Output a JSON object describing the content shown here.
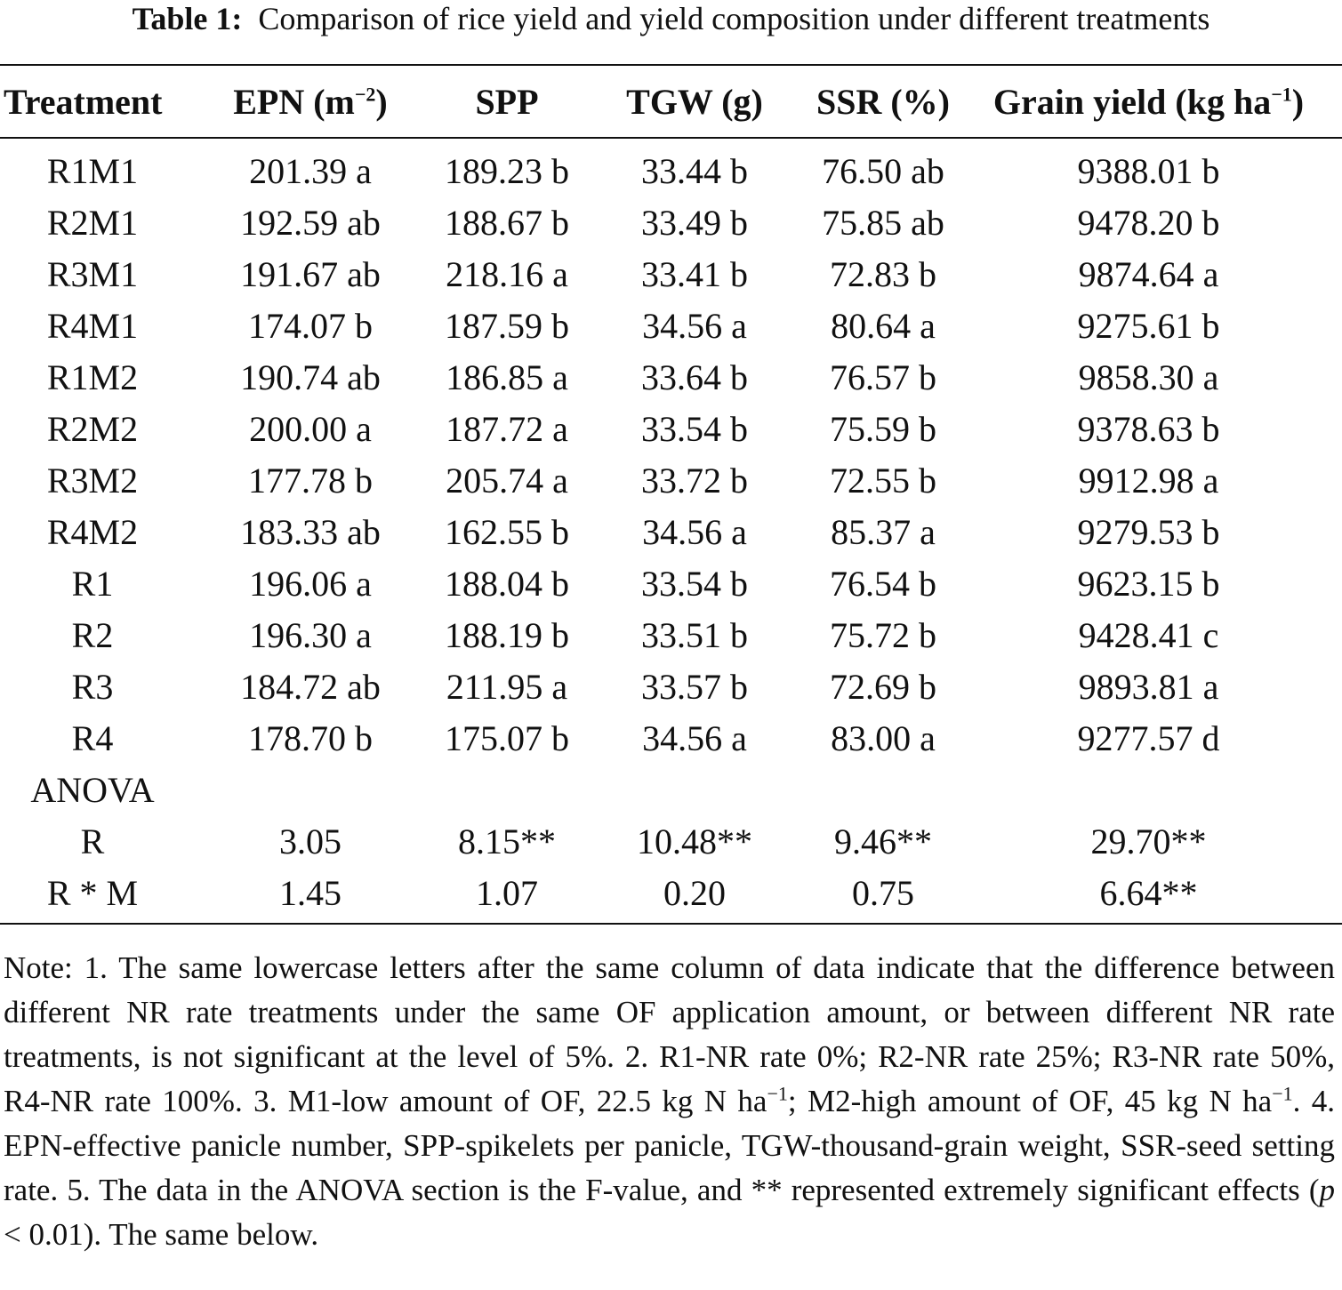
{
  "caption": {
    "label": "Table 1:",
    "text": "Comparison of rice yield and yield composition under different treatments"
  },
  "table": {
    "headers": {
      "treatment": "Treatment",
      "epn": "EPN (m",
      "epn_sup": "−2",
      "epn_close": ")",
      "spp": "SPP",
      "tgw": "TGW (g)",
      "ssr": "SSR (%)",
      "yield": "Grain yield (kg ha",
      "yield_sup": "−1",
      "yield_close": ")"
    },
    "rows": [
      {
        "treatment": "R1M1",
        "epn": "201.39 a",
        "spp": "189.23 b",
        "tgw": "33.44 b",
        "ssr": "76.50 ab",
        "yield": "9388.01 b"
      },
      {
        "treatment": "R2M1",
        "epn": "192.59 ab",
        "spp": "188.67 b",
        "tgw": "33.49 b",
        "ssr": "75.85 ab",
        "yield": "9478.20 b"
      },
      {
        "treatment": "R3M1",
        "epn": "191.67 ab",
        "spp": "218.16 a",
        "tgw": "33.41 b",
        "ssr": "72.83 b",
        "yield": "9874.64 a"
      },
      {
        "treatment": "R4M1",
        "epn": "174.07 b",
        "spp": "187.59 b",
        "tgw": "34.56 a",
        "ssr": "80.64 a",
        "yield": "9275.61 b"
      },
      {
        "treatment": "R1M2",
        "epn": "190.74 ab",
        "spp": "186.85 a",
        "tgw": "33.64 b",
        "ssr": "76.57 b",
        "yield": "9858.30 a"
      },
      {
        "treatment": "R2M2",
        "epn": "200.00 a",
        "spp": "187.72 a",
        "tgw": "33.54 b",
        "ssr": "75.59 b",
        "yield": "9378.63 b"
      },
      {
        "treatment": "R3M2",
        "epn": "177.78 b",
        "spp": "205.74 a",
        "tgw": "33.72 b",
        "ssr": "72.55 b",
        "yield": "9912.98 a"
      },
      {
        "treatment": "R4M2",
        "epn": "183.33 ab",
        "spp": "162.55 b",
        "tgw": "34.56 a",
        "ssr": "85.37 a",
        "yield": "9279.53 b"
      },
      {
        "treatment": "R1",
        "epn": "196.06 a",
        "spp": "188.04 b",
        "tgw": "33.54 b",
        "ssr": "76.54 b",
        "yield": "9623.15 b"
      },
      {
        "treatment": "R2",
        "epn": "196.30 a",
        "spp": "188.19 b",
        "tgw": "33.51 b",
        "ssr": "75.72 b",
        "yield": "9428.41 c"
      },
      {
        "treatment": "R3",
        "epn": "184.72 ab",
        "spp": "211.95 a",
        "tgw": "33.57 b",
        "ssr": "72.69 b",
        "yield": "9893.81 a"
      },
      {
        "treatment": "R4",
        "epn": "178.70 b",
        "spp": "175.07 b",
        "tgw": "34.56 a",
        "ssr": "83.00 a",
        "yield": "9277.57 d"
      },
      {
        "treatment": "ANOVA",
        "epn": "",
        "spp": "",
        "tgw": "",
        "ssr": "",
        "yield": ""
      },
      {
        "treatment": "R",
        "epn": "3.05",
        "spp": "8.15**",
        "tgw": "10.48**",
        "ssr": "9.46**",
        "yield": "29.70**"
      },
      {
        "treatment": "R * M",
        "epn": "1.45",
        "spp": "1.07",
        "tgw": "0.20",
        "ssr": "0.75",
        "yield": "6.64**"
      }
    ]
  },
  "note": {
    "part1": "Note: 1. The same lowercase letters after the same column of data indicate that the difference between different NR rate treatments under the same OF application amount, or between different NR rate treatments, is not significant at the level of 5%. 2. R1-NR rate 0%; R2-NR rate 25%; R3-NR rate 50%, R4-NR rate 100%. 3. M1-low amount of OF, 22.5 kg N ha",
    "sup1": "−1",
    "part2": "; M2-high amount of OF, 45 kg N ha",
    "sup2": "−1",
    "part3": ". 4. EPN-effective panicle number, SPP-spikelets per panicle, TGW-thousand-grain weight, SSR-seed setting rate. 5. The data in the ANOVA section is the F-value, and ** represented extremely significant effects (",
    "p": "p",
    "part4": " < 0.01). The same below."
  }
}
